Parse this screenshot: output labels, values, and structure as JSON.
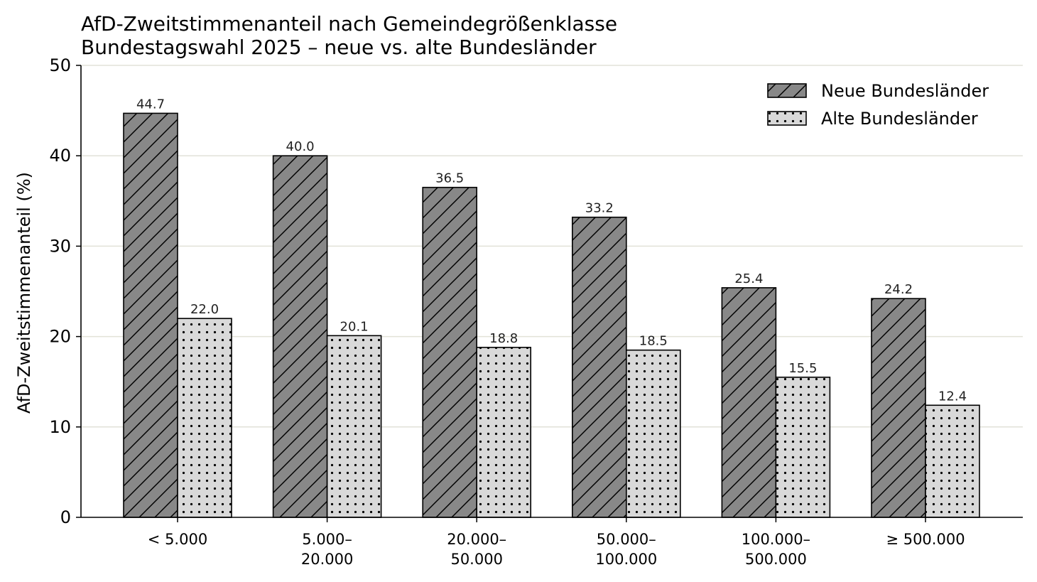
{
  "chart_data": {
    "type": "bar",
    "title_line1": "AfD-Zweitstimmenanteil nach Gemeindegrößenklasse",
    "title_line2": "Bundestagswahl 2025 – neue vs. alte Bundesländer",
    "ylabel": "AfD-Zweitstimmenanteil (%)",
    "xlabel": "",
    "ylim": [
      0,
      50
    ],
    "yticks": [
      0,
      10,
      20,
      30,
      40,
      50
    ],
    "grid": "horizontal",
    "legend_position": "top-right",
    "categories": [
      [
        "< 5.000"
      ],
      [
        "5.000–",
        "20.000"
      ],
      [
        "20.000–",
        "50.000"
      ],
      [
        "50.000–",
        "100.000"
      ],
      [
        "100.000–",
        "500.000"
      ],
      [
        "≥ 500.000"
      ]
    ],
    "series": [
      {
        "name": "Neue Bundesländer",
        "values": [
          44.7,
          40.0,
          36.5,
          33.2,
          25.4,
          24.2
        ],
        "labels": [
          "44.7",
          "40.0",
          "36.5",
          "33.2",
          "25.4",
          "24.2"
        ],
        "color": "#888888",
        "pattern": "hatch"
      },
      {
        "name": "Alte Bundesländer",
        "values": [
          22.0,
          20.1,
          18.8,
          18.5,
          15.5,
          12.4
        ],
        "labels": [
          "22.0",
          "20.1",
          "18.8",
          "18.5",
          "15.5",
          "12.4"
        ],
        "color": "#d9d9d9",
        "pattern": "dots"
      }
    ]
  }
}
